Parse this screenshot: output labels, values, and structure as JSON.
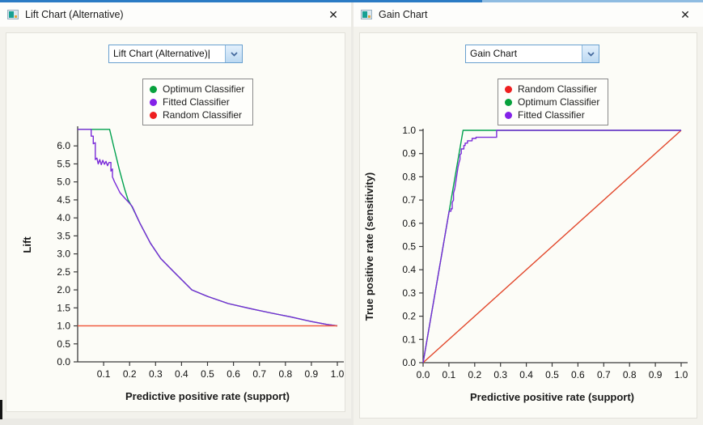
{
  "accent": {
    "top_line_left": "#2b7bc4",
    "top_line_right": "#8fbce1"
  },
  "windows": [
    {
      "title": "Lift Chart (Alternative)",
      "close_label": "✕",
      "combo": {
        "value": "Lift Chart (Alternative)",
        "caret": "|"
      }
    },
    {
      "title": "Gain Chart",
      "close_label": "✕",
      "combo": {
        "value": "Gain Chart"
      }
    }
  ],
  "chart_data": [
    {
      "type": "line",
      "title": "Lift Chart (Alternative)",
      "xlabel": "Predictive positive rate (support)",
      "ylabel": "Lift",
      "xlim": [
        0,
        1.0
      ],
      "ylim": [
        0,
        6.5
      ],
      "xticks": [
        0.1,
        0.2,
        0.3,
        0.4,
        0.5,
        0.6,
        0.7,
        0.8,
        0.9,
        1.0
      ],
      "yticks": [
        0.0,
        0.5,
        1.0,
        1.5,
        2.0,
        2.5,
        3.0,
        3.5,
        4.0,
        4.5,
        5.0,
        5.5,
        6.0
      ],
      "grid": false,
      "legend_position": "top-center",
      "series": [
        {
          "name": "Optimum Classifier",
          "color": "#00a14e",
          "dot": "#07a13c",
          "points": [
            [
              0,
              6.46
            ],
            [
              0.123,
              6.46
            ],
            [
              0.14,
              5.95
            ],
            [
              0.16,
              5.35
            ],
            [
              0.18,
              4.82
            ],
            [
              0.194,
              4.5
            ],
            [
              0.21,
              4.3
            ],
            [
              0.24,
              3.85
            ],
            [
              0.28,
              3.3
            ],
            [
              0.32,
              2.87
            ],
            [
              0.37,
              2.5
            ],
            [
              0.44,
              2.0
            ],
            [
              0.5,
              1.82
            ],
            [
              0.58,
              1.62
            ],
            [
              0.67,
              1.47
            ],
            [
              0.75,
              1.35
            ],
            [
              0.82,
              1.25
            ],
            [
              0.9,
              1.12
            ],
            [
              0.96,
              1.04
            ],
            [
              1.0,
              1.0
            ]
          ]
        },
        {
          "name": "Fitted Classifier",
          "color": "#7a2bd9",
          "dot": "#8322e8",
          "points": [
            [
              0,
              6.46
            ],
            [
              0.052,
              6.46
            ],
            [
              0.052,
              6.27
            ],
            [
              0.06,
              6.27
            ],
            [
              0.06,
              6.06
            ],
            [
              0.068,
              6.09
            ],
            [
              0.068,
              5.62
            ],
            [
              0.074,
              5.66
            ],
            [
              0.079,
              5.5
            ],
            [
              0.085,
              5.62
            ],
            [
              0.091,
              5.48
            ],
            [
              0.097,
              5.6
            ],
            [
              0.103,
              5.49
            ],
            [
              0.109,
              5.57
            ],
            [
              0.115,
              5.45
            ],
            [
              0.121,
              5.54
            ],
            [
              0.128,
              5.54
            ],
            [
              0.128,
              5.3
            ],
            [
              0.134,
              5.36
            ],
            [
              0.134,
              5.14
            ],
            [
              0.142,
              5.0
            ],
            [
              0.152,
              4.86
            ],
            [
              0.163,
              4.7
            ],
            [
              0.175,
              4.6
            ],
            [
              0.194,
              4.45
            ],
            [
              0.21,
              4.32
            ],
            [
              0.24,
              3.85
            ],
            [
              0.28,
              3.3
            ],
            [
              0.32,
              2.87
            ],
            [
              0.37,
              2.5
            ],
            [
              0.44,
              2.0
            ],
            [
              0.5,
              1.82
            ],
            [
              0.58,
              1.62
            ],
            [
              0.67,
              1.47
            ],
            [
              0.75,
              1.35
            ],
            [
              0.82,
              1.25
            ],
            [
              0.9,
              1.12
            ],
            [
              0.96,
              1.04
            ],
            [
              1.0,
              1.0
            ]
          ]
        },
        {
          "name": "Random Classifier",
          "color": "#f05b40",
          "dot": "#ee1f1f",
          "points": [
            [
              0,
              1
            ],
            [
              1,
              1
            ]
          ]
        }
      ]
    },
    {
      "type": "line",
      "title": "Gain Chart",
      "xlabel": "Predictive positive rate (support)",
      "ylabel": "True positive rate (sensitivity)",
      "xlim": [
        0,
        1.0
      ],
      "ylim": [
        0,
        1.0
      ],
      "xticks": [
        0.0,
        0.1,
        0.2,
        0.3,
        0.4,
        0.5,
        0.6,
        0.7,
        0.8,
        0.9,
        1.0
      ],
      "yticks": [
        0.0,
        0.1,
        0.2,
        0.3,
        0.4,
        0.5,
        0.6,
        0.7,
        0.8,
        0.9,
        1.0
      ],
      "grid": false,
      "legend_position": "top-center",
      "series": [
        {
          "name": "Random Classifier",
          "color": "#e2472b",
          "dot": "#ee1f1f",
          "points": [
            [
              0,
              0
            ],
            [
              1,
              1
            ]
          ]
        },
        {
          "name": "Optimum Classifier",
          "color": "#00a14e",
          "dot": "#07a13c",
          "points": [
            [
              0,
              0
            ],
            [
              0.155,
              1.0
            ],
            [
              1.0,
              1.0
            ]
          ]
        },
        {
          "name": "Fitted Classifier",
          "color": "#7a2bd9",
          "dot": "#8322e8",
          "points": [
            [
              0,
              0
            ],
            [
              0.101,
              0.652
            ],
            [
              0.108,
              0.652
            ],
            [
              0.108,
              0.662
            ],
            [
              0.113,
              0.662
            ],
            [
              0.113,
              0.69
            ],
            [
              0.118,
              0.7
            ],
            [
              0.118,
              0.73
            ],
            [
              0.123,
              0.75
            ],
            [
              0.127,
              0.78
            ],
            [
              0.131,
              0.81
            ],
            [
              0.135,
              0.84
            ],
            [
              0.139,
              0.86
            ],
            [
              0.143,
              0.875
            ],
            [
              0.143,
              0.895
            ],
            [
              0.148,
              0.9
            ],
            [
              0.148,
              0.92
            ],
            [
              0.158,
              0.92
            ],
            [
              0.158,
              0.935
            ],
            [
              0.163,
              0.935
            ],
            [
              0.163,
              0.945
            ],
            [
              0.172,
              0.945
            ],
            [
              0.172,
              0.955
            ],
            [
              0.19,
              0.955
            ],
            [
              0.19,
              0.965
            ],
            [
              0.205,
              0.965
            ],
            [
              0.205,
              0.97
            ],
            [
              0.285,
              0.97
            ],
            [
              0.285,
              1.0
            ],
            [
              1.0,
              1.0
            ]
          ]
        }
      ]
    }
  ]
}
